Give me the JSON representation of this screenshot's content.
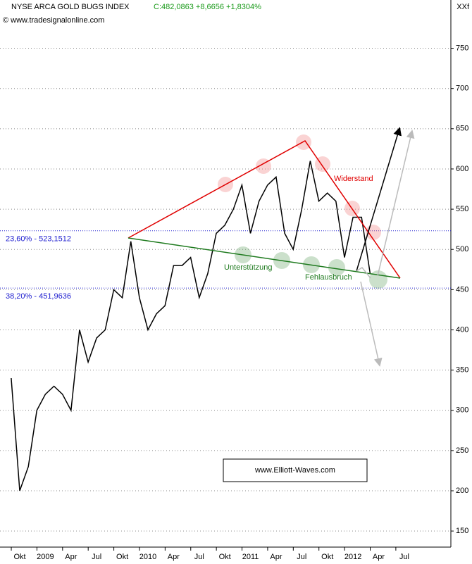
{
  "chart_data": {
    "type": "line",
    "title": "NYSE ARCA GOLD BUGS INDEX",
    "subtitle": "C:482,0863 +8,6656 +1,8304%",
    "source": "© www.tradesignalonline.com",
    "corner_label": "XXf",
    "categories": [
      null,
      "Okt",
      null,
      null,
      "2009",
      null,
      null,
      "Apr",
      null,
      null,
      "Jul",
      null,
      null,
      "Okt",
      null,
      null,
      "2010",
      null,
      null,
      "Apr",
      null,
      null,
      "Jul",
      null,
      null,
      "Okt",
      null,
      null,
      "2011",
      null,
      null,
      "Apr",
      null,
      null,
      "Jul",
      null,
      null,
      "Okt",
      null,
      null,
      "2012",
      null,
      null,
      "Apr",
      null,
      null,
      "Jul",
      null,
      null
    ],
    "values": [
      340,
      200,
      230,
      300,
      320,
      330,
      320,
      300,
      400,
      360,
      390,
      400,
      450,
      440,
      510,
      440,
      400,
      420,
      430,
      480,
      480,
      490,
      440,
      470,
      520,
      530,
      550,
      580,
      520,
      560,
      580,
      590,
      520,
      500,
      550,
      610,
      560,
      570,
      560,
      490,
      540,
      540,
      470,
      null,
      null,
      null,
      null,
      null,
      null
    ],
    "color": "#000000",
    "ylim": [
      130,
      810
    ],
    "yticks": [
      150,
      200,
      250,
      300,
      350,
      400,
      450,
      500,
      550,
      600,
      650,
      700,
      750
    ],
    "grid": true,
    "fib_levels": [
      {
        "label": "23,60% - 523,1512",
        "value": 523.1512
      },
      {
        "label": "38,20% - 451,9636",
        "value": 451.9636
      }
    ],
    "annotations": [
      "Widerstand",
      "Unterstützung",
      "Fehlausbruch",
      "www.Elliott-Waves.com"
    ]
  }
}
